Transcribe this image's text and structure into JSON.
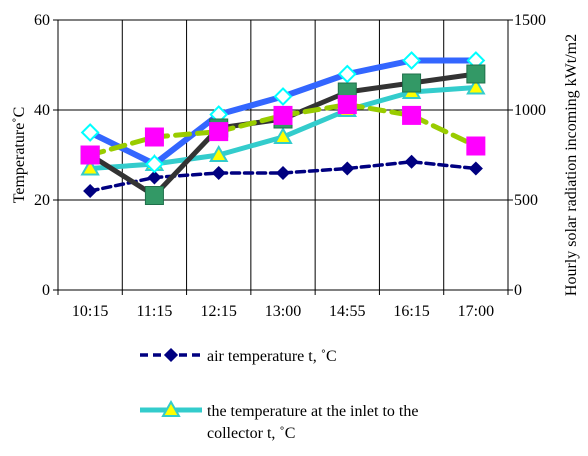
{
  "chart_data": {
    "type": "line",
    "categories": [
      "10:15",
      "11:15",
      "12:15",
      "13:00",
      "14:55",
      "16:15",
      "17:00"
    ],
    "ylabel": "Temperature˚C",
    "y2label": "Hourly solar radiation incoming kWt/m2",
    "ylim": [
      0,
      60
    ],
    "yticks": [
      0,
      20,
      40,
      60
    ],
    "y2lim": [
      0,
      1500
    ],
    "y2ticks": [
      0,
      500,
      1000,
      1500
    ],
    "grid": true,
    "legend_position": "bottom",
    "series": [
      {
        "key": "air",
        "name": "air temperature t, ˚C",
        "axis": "left",
        "color": "#000080",
        "dash": "8,5",
        "width": 3.5,
        "marker": "diamond",
        "marker_fill": "#000080",
        "marker_stroke": "#000080",
        "values": [
          22,
          25,
          26,
          26,
          27,
          28.5,
          27
        ]
      },
      {
        "key": "inlet",
        "name": "the temperature at the inlet to the collector t, ˚C",
        "axis": "left",
        "color": "#33CCCC",
        "dash": "",
        "width": 5,
        "marker": "triangle",
        "marker_fill": "#FFFF00",
        "marker_stroke": "#33CCCC",
        "values": [
          27,
          28,
          30,
          34,
          40,
          44,
          45
        ]
      },
      {
        "key": "outlet",
        "axis": "left",
        "color": "#3366FF",
        "dash": "",
        "width": 6,
        "marker": "diamond-open",
        "marker_fill": "#FFFFFF",
        "marker_stroke": "#00FFFF",
        "values": [
          35,
          28,
          39,
          43,
          48,
          51,
          51
        ]
      },
      {
        "key": "collector",
        "axis": "left",
        "color": "#333333",
        "dash": "",
        "width": 5,
        "marker": "square",
        "marker_fill": "#339966",
        "marker_stroke": "#1F6F4A",
        "values": [
          30,
          21,
          36,
          38,
          44,
          46,
          48
        ]
      },
      {
        "key": "radiation",
        "axis": "right",
        "color": "#99CC00",
        "dash": "14,8",
        "width": 5,
        "marker": "square",
        "marker_fill": "#FF00FF",
        "marker_stroke": "#FF00FF",
        "values": [
          750,
          850,
          880,
          970,
          1030,
          970,
          800
        ]
      }
    ],
    "legend": [
      {
        "series": "air",
        "text": [
          "air temperature t, ˚C"
        ]
      },
      {
        "series": "inlet",
        "text": [
          "the temperature at the inlet to the",
          "collector t, ˚C"
        ]
      }
    ]
  }
}
